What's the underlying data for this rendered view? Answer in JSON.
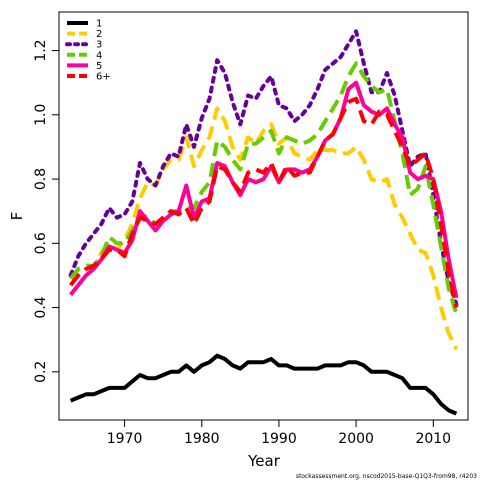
{
  "chart_data": {
    "type": "line",
    "xlabel": "Year",
    "ylabel": "F",
    "xlim": [
      1961.5,
      2014.5
    ],
    "ylim": [
      0.05,
      1.32
    ],
    "xticks": [
      1970,
      1980,
      1990,
      2000,
      2010
    ],
    "yticks": [
      0.2,
      0.4,
      0.6,
      0.8,
      1.0,
      1.2
    ],
    "ytick_labels": [
      "0.2",
      "0.4",
      "0.6",
      "0.8",
      "1.0",
      "1.2"
    ],
    "grid": false,
    "legend_position": "top-left",
    "credit": "stockassessment.org, nscod2015-base-Q1Q3-from98, r4203",
    "x": [
      1963,
      1964,
      1965,
      1966,
      1967,
      1968,
      1969,
      1970,
      1971,
      1972,
      1973,
      1974,
      1975,
      1976,
      1977,
      1978,
      1979,
      1980,
      1981,
      1982,
      1983,
      1984,
      1985,
      1986,
      1987,
      1988,
      1989,
      1990,
      1991,
      1992,
      1993,
      1994,
      1995,
      1996,
      1997,
      1998,
      1999,
      2000,
      2001,
      2002,
      2003,
      2004,
      2005,
      2006,
      2007,
      2008,
      2009,
      2010,
      2011,
      2012,
      2013
    ],
    "series": [
      {
        "name": "1",
        "color": "#000000",
        "dash": "solid",
        "values": [
          0.11,
          0.12,
          0.13,
          0.13,
          0.14,
          0.15,
          0.15,
          0.15,
          0.17,
          0.19,
          0.18,
          0.18,
          0.19,
          0.2,
          0.2,
          0.22,
          0.2,
          0.22,
          0.23,
          0.25,
          0.24,
          0.22,
          0.21,
          0.23,
          0.23,
          0.23,
          0.24,
          0.22,
          0.22,
          0.21,
          0.21,
          0.21,
          0.21,
          0.22,
          0.22,
          0.22,
          0.23,
          0.23,
          0.22,
          0.2,
          0.2,
          0.2,
          0.19,
          0.18,
          0.15,
          0.15,
          0.15,
          0.13,
          0.1,
          0.08,
          0.07
        ]
      },
      {
        "name": "2",
        "color": "#FFCC00",
        "dash": "dashed",
        "values": [
          0.47,
          0.5,
          0.52,
          0.53,
          0.57,
          0.6,
          0.58,
          0.61,
          0.66,
          0.74,
          0.79,
          0.78,
          0.83,
          0.86,
          0.86,
          0.93,
          0.84,
          0.89,
          0.93,
          1.02,
          0.98,
          0.9,
          0.86,
          0.93,
          0.91,
          0.95,
          0.97,
          0.91,
          0.93,
          0.88,
          0.87,
          0.86,
          0.89,
          0.89,
          0.89,
          0.88,
          0.88,
          0.9,
          0.86,
          0.8,
          0.79,
          0.8,
          0.72,
          0.68,
          0.63,
          0.58,
          0.57,
          0.5,
          0.4,
          0.32,
          0.27
        ]
      },
      {
        "name": "3",
        "color": "#660099",
        "dash": "dotted",
        "values": [
          0.5,
          0.56,
          0.6,
          0.63,
          0.66,
          0.71,
          0.68,
          0.69,
          0.73,
          0.85,
          0.8,
          0.78,
          0.84,
          0.88,
          0.87,
          0.97,
          0.9,
          0.99,
          1.05,
          1.17,
          1.13,
          1.04,
          0.97,
          1.06,
          1.05,
          1.09,
          1.12,
          1.03,
          1.02,
          0.98,
          1.0,
          1.03,
          1.08,
          1.14,
          1.16,
          1.18,
          1.22,
          1.26,
          1.16,
          1.07,
          1.07,
          1.13,
          1.06,
          0.95,
          0.84,
          0.87,
          0.88,
          0.75,
          0.6,
          0.48,
          0.41
        ]
      },
      {
        "name": "4",
        "color": "#66CC00",
        "dash": "dashed",
        "values": [
          0.49,
          0.52,
          0.53,
          0.53,
          0.56,
          0.62,
          0.6,
          0.6,
          0.64,
          0.69,
          0.68,
          0.66,
          0.68,
          0.7,
          0.7,
          0.71,
          0.71,
          0.76,
          0.79,
          0.92,
          0.9,
          0.86,
          0.83,
          0.91,
          0.91,
          0.93,
          0.95,
          0.88,
          0.93,
          0.92,
          0.91,
          0.92,
          0.94,
          0.98,
          1.02,
          1.06,
          1.12,
          1.16,
          1.12,
          1.09,
          1.07,
          1.08,
          0.98,
          0.88,
          0.75,
          0.77,
          0.84,
          0.72,
          0.59,
          0.46,
          0.38
        ]
      },
      {
        "name": "5",
        "color": "#FF0099",
        "dash": "solid",
        "values": [
          0.44,
          0.47,
          0.5,
          0.52,
          0.55,
          0.59,
          0.58,
          0.57,
          0.61,
          0.7,
          0.67,
          0.64,
          0.67,
          0.69,
          0.7,
          0.78,
          0.68,
          0.73,
          0.74,
          0.85,
          0.84,
          0.79,
          0.75,
          0.8,
          0.79,
          0.8,
          0.84,
          0.79,
          0.83,
          0.83,
          0.82,
          0.83,
          0.87,
          0.92,
          0.94,
          0.99,
          1.08,
          1.1,
          1.03,
          1.01,
          1.0,
          1.02,
          0.97,
          0.93,
          0.82,
          0.8,
          0.81,
          0.8,
          0.7,
          0.55,
          0.43
        ]
      },
      {
        "name": "6+",
        "color": "#FF0000",
        "dash": "dashed",
        "values": [
          0.47,
          0.5,
          0.52,
          0.53,
          0.55,
          0.58,
          0.58,
          0.56,
          0.63,
          0.68,
          0.67,
          0.66,
          0.68,
          0.7,
          0.69,
          0.71,
          0.66,
          0.71,
          0.73,
          0.84,
          0.83,
          0.79,
          0.76,
          0.82,
          0.83,
          0.82,
          0.85,
          0.79,
          0.84,
          0.81,
          0.82,
          0.82,
          0.87,
          0.92,
          0.94,
          0.99,
          1.04,
          1.05,
          0.98,
          0.97,
          1.01,
          1.0,
          0.95,
          0.9,
          0.84,
          0.86,
          0.88,
          0.8,
          0.66,
          0.51,
          0.4
        ]
      }
    ]
  }
}
